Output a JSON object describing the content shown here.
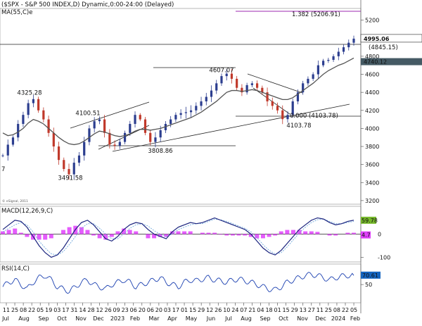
{
  "header": {
    "title": "($SPX - S&P 500 INDEX,D) Dynamic,0:00-24:00 (Delayed)",
    "ma_label": "MA(55,C)e"
  },
  "colors": {
    "price": "#c0392b",
    "price_up": "#2c3e8f",
    "ma": "#555555",
    "macd": "#1a237e",
    "signal": "#6fa8dc",
    "hist": "#e040fb",
    "rsi": "#1a3fb0",
    "fib": "#9c27b0",
    "last_tag": "#455a64",
    "macd_tag": "#76b82a",
    "hist_tag": "#e040fb",
    "rsi_tag": "#1565c0"
  },
  "chart_data": [
    {
      "type": "line",
      "name": "price-panel",
      "x_ticks": [
        "11",
        "25",
        "08",
        "22",
        "05",
        "19",
        "03",
        "17",
        "31",
        "14",
        "28",
        "12",
        "26",
        "09",
        "23",
        "06",
        "20",
        "06",
        "20",
        "03",
        "17",
        "01",
        "15",
        "29",
        "12",
        "26",
        "10",
        "24",
        "07",
        "21",
        "04",
        "18",
        "01",
        "15",
        "29",
        "13",
        "27",
        "11",
        "25",
        "08",
        "22",
        "05"
      ],
      "month_labels": [
        "Jul",
        "Aug",
        "Sep",
        "Oct",
        "Nov",
        "Dec",
        "2023",
        "Feb",
        "Mar",
        "Apr",
        "May",
        "Jun",
        "Jul",
        "Aug",
        "Sep",
        "Oct",
        "Nov",
        "Dec",
        "2024",
        "Feb"
      ],
      "y_ticks": [
        3200,
        3400,
        3600,
        3800,
        4000,
        4200,
        4400,
        4600,
        4800,
        5000,
        5200
      ],
      "ylim": [
        3160,
        5330
      ],
      "price_points": [
        3700,
        3820,
        3900,
        4050,
        4150,
        4280,
        4325,
        4200,
        4100,
        3950,
        3800,
        3650,
        3550,
        3491,
        3620,
        3700,
        3850,
        4000,
        4080,
        4100,
        3950,
        3820,
        3808,
        3850,
        3950,
        4050,
        4150,
        4100,
        3950,
        3850,
        3900,
        3980,
        4050,
        4100,
        4150,
        4170,
        4180,
        4200,
        4250,
        4300,
        4350,
        4420,
        4500,
        4580,
        4607,
        4550,
        4450,
        4400,
        4480,
        4500,
        4450,
        4400,
        4300,
        4250,
        4200,
        4103,
        4150,
        4300,
        4400,
        4500,
        4550,
        4600,
        4700,
        4750,
        4760,
        4800,
        4850,
        4900,
        4950,
        4995
      ],
      "ma_points": [
        3950,
        3920,
        3930,
        3960,
        4000,
        4060,
        4100,
        4080,
        4050,
        4000,
        3950,
        3900,
        3860,
        3830,
        3820,
        3830,
        3860,
        3900,
        3940,
        3970,
        3960,
        3940,
        3920,
        3910,
        3920,
        3940,
        3970,
        3990,
        3990,
        3980,
        3990,
        4000,
        4020,
        4040,
        4060,
        4080,
        4100,
        4120,
        4150,
        4180,
        4220,
        4260,
        4300,
        4350,
        4400,
        4420,
        4420,
        4410,
        4420,
        4430,
        4420,
        4400,
        4380,
        4360,
        4340,
        4320,
        4320,
        4340,
        4380,
        4420,
        4460,
        4500,
        4550,
        4600,
        4640,
        4670,
        4700,
        4720,
        4750,
        4780
      ],
      "annotations": [
        {
          "label": "4325.28",
          "value": 4325.28
        },
        {
          "label": "4100.51",
          "value": 4100.51
        },
        {
          "label": "3491.58",
          "value": 3491.58
        },
        {
          "label": "3808.86",
          "value": 3808.86
        },
        {
          "label": "4607.07",
          "value": 4607.07
        },
        {
          "label": "4103.78",
          "value": 4103.78
        },
        {
          "label": "0.000 (4103.78)",
          "value": 4103.78
        },
        {
          "label": "1.382 (5206.91)",
          "value": 5206.91
        },
        {
          "label": "(4845.15)",
          "value": 4845.15
        }
      ],
      "last_price": "4995.06",
      "ma_last": "4740.12",
      "left_cut_label": "7",
      "credit": "© eSignal, 2011"
    },
    {
      "type": "line",
      "name": "macd-panel",
      "title": "MACD(12,26,9,C)",
      "y_ticks": [
        "0",
        "-100"
      ],
      "ylim": [
        -120,
        120
      ],
      "macd_last": "59.78",
      "hist_last": "4.7",
      "macd_points": [
        20,
        40,
        60,
        55,
        30,
        -10,
        -50,
        -80,
        -100,
        -90,
        -60,
        -20,
        20,
        50,
        60,
        40,
        10,
        -20,
        -30,
        -10,
        20,
        40,
        50,
        45,
        20,
        0,
        -10,
        -20,
        10,
        30,
        40,
        50,
        45,
        50,
        60,
        70,
        60,
        50,
        40,
        30,
        20,
        0,
        -30,
        -60,
        -80,
        -90,
        -70,
        -40,
        -10,
        20,
        40,
        60,
        70,
        65,
        50,
        40,
        45,
        55,
        60
      ],
      "signal_points": [
        10,
        25,
        40,
        50,
        40,
        10,
        -30,
        -60,
        -85,
        -90,
        -75,
        -45,
        -10,
        25,
        45,
        45,
        25,
        0,
        -20,
        -20,
        0,
        25,
        40,
        45,
        35,
        15,
        0,
        -10,
        0,
        20,
        30,
        40,
        45,
        45,
        55,
        65,
        62,
        55,
        45,
        35,
        25,
        10,
        -15,
        -45,
        -70,
        -85,
        -80,
        -55,
        -25,
        5,
        30,
        50,
        62,
        65,
        55,
        45,
        45,
        50,
        55
      ]
    },
    {
      "type": "line",
      "name": "rsi-panel",
      "title": "RSI(14,C)",
      "y_ticks": [
        "50"
      ],
      "ylim": [
        10,
        95
      ],
      "rsi_last": "70.61",
      "rsi_points": [
        45,
        55,
        60,
        50,
        40,
        55,
        65,
        70,
        60,
        45,
        40,
        35,
        45,
        55,
        60,
        50,
        45,
        40,
        50,
        55,
        60,
        55,
        45,
        50,
        55,
        60,
        65,
        55,
        50,
        45,
        55,
        60,
        58,
        62,
        65,
        60,
        58,
        55,
        60,
        62,
        58,
        55,
        50,
        45,
        40,
        38,
        45,
        55,
        60,
        65,
        70,
        72,
        70,
        65,
        60,
        65,
        68,
        70,
        70
      ]
    }
  ]
}
